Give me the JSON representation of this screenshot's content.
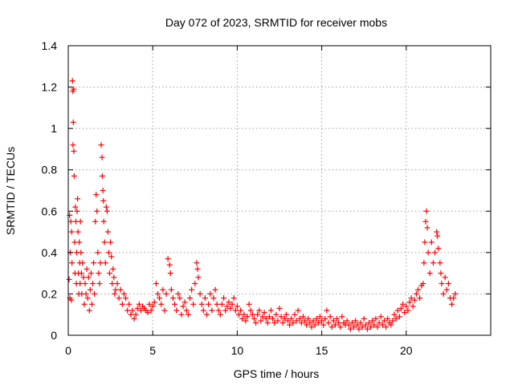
{
  "chart_data": {
    "type": "scatter",
    "title": "Day 072 of 2023, SRMTID for receiver mobs",
    "xlabel": "GPS time / hours",
    "ylabel": "SRMTID / TECUs",
    "xlim": [
      0,
      25
    ],
    "ylim": [
      0,
      1.4
    ],
    "xticks": [
      {
        "value": 0,
        "label": "0"
      },
      {
        "value": 5,
        "label": "5"
      },
      {
        "value": 10,
        "label": "10"
      },
      {
        "value": 15,
        "label": "15"
      },
      {
        "value": 20,
        "label": "20"
      }
    ],
    "yticks": [
      {
        "value": 0,
        "label": "0"
      },
      {
        "value": 0.2,
        "label": "0.2"
      },
      {
        "value": 0.4,
        "label": "0.4"
      },
      {
        "value": 0.6,
        "label": "0.6"
      },
      {
        "value": 0.8,
        "label": "0.8"
      },
      {
        "value": 1.0,
        "label": "1"
      },
      {
        "value": 1.2,
        "label": "1.2"
      },
      {
        "value": 1.4,
        "label": "1.4"
      }
    ],
    "grid": true,
    "marker": "plus",
    "color": "#ff0000",
    "series": [
      {
        "name": "SRMTID",
        "points": [
          [
            0.05,
            0.27
          ],
          [
            0.08,
            0.58
          ],
          [
            0.1,
            0.18
          ],
          [
            0.12,
            0.4
          ],
          [
            0.15,
            0.55
          ],
          [
            0.18,
            0.17
          ],
          [
            0.2,
            0.5
          ],
          [
            0.22,
            0.35
          ],
          [
            0.25,
            1.23
          ],
          [
            0.27,
            1.18
          ],
          [
            0.28,
            0.92
          ],
          [
            0.3,
            1.03
          ],
          [
            0.32,
            1.19
          ],
          [
            0.33,
            0.89
          ],
          [
            0.35,
            0.77
          ],
          [
            0.38,
            0.45
          ],
          [
            0.4,
            0.3
          ],
          [
            0.42,
            0.62
          ],
          [
            0.45,
            0.55
          ],
          [
            0.48,
            0.25
          ],
          [
            0.5,
            0.4
          ],
          [
            0.52,
            0.6
          ],
          [
            0.55,
            0.66
          ],
          [
            0.58,
            0.5
          ],
          [
            0.6,
            0.3
          ],
          [
            0.62,
            0.2
          ],
          [
            0.65,
            0.45
          ],
          [
            0.68,
            0.35
          ],
          [
            0.7,
            0.25
          ],
          [
            0.72,
            0.55
          ],
          [
            0.75,
            0.4
          ],
          [
            0.78,
            0.3
          ],
          [
            0.8,
            0.2
          ],
          [
            0.85,
            0.35
          ],
          [
            0.9,
            0.28
          ],
          [
            0.95,
            0.15
          ],
          [
            1.0,
            0.25
          ],
          [
            1.05,
            0.2
          ],
          [
            1.1,
            0.32
          ],
          [
            1.15,
            0.18
          ],
          [
            1.2,
            0.28
          ],
          [
            1.25,
            0.12
          ],
          [
            1.3,
            0.22
          ],
          [
            1.35,
            0.3
          ],
          [
            1.4,
            0.15
          ],
          [
            1.45,
            0.25
          ],
          [
            1.5,
            0.35
          ],
          [
            1.55,
            0.2
          ],
          [
            1.6,
            0.55
          ],
          [
            1.65,
            0.68
          ],
          [
            1.7,
            0.6
          ],
          [
            1.75,
            0.4
          ],
          [
            1.8,
            0.3
          ],
          [
            1.85,
            0.25
          ],
          [
            1.9,
            0.35
          ],
          [
            1.95,
            0.92
          ],
          [
            2.0,
            0.86
          ],
          [
            2.02,
            0.77
          ],
          [
            2.05,
            0.7
          ],
          [
            2.08,
            0.65
          ],
          [
            2.1,
            0.55
          ],
          [
            2.15,
            0.45
          ],
          [
            2.2,
            0.35
          ],
          [
            2.25,
            0.62
          ],
          [
            2.3,
            0.6
          ],
          [
            2.35,
            0.5
          ],
          [
            2.4,
            0.4
          ],
          [
            2.45,
            0.3
          ],
          [
            2.5,
            0.45
          ],
          [
            2.55,
            0.38
          ],
          [
            2.6,
            0.25
          ],
          [
            2.65,
            0.32
          ],
          [
            2.7,
            0.28
          ],
          [
            2.75,
            0.2
          ],
          [
            2.8,
            0.22
          ],
          [
            2.9,
            0.25
          ],
          [
            3.0,
            0.18
          ],
          [
            3.1,
            0.22
          ],
          [
            3.2,
            0.15
          ],
          [
            3.3,
            0.2
          ],
          [
            3.4,
            0.18
          ],
          [
            3.5,
            0.12
          ],
          [
            3.6,
            0.15
          ],
          [
            3.7,
            0.1
          ],
          [
            3.8,
            0.12
          ],
          [
            3.9,
            0.08
          ],
          [
            4.0,
            0.1
          ],
          [
            4.1,
            0.13
          ],
          [
            4.2,
            0.15
          ],
          [
            4.3,
            0.12
          ],
          [
            4.4,
            0.14
          ],
          [
            4.5,
            0.13
          ],
          [
            4.6,
            0.12
          ],
          [
            4.7,
            0.11
          ],
          [
            4.8,
            0.15
          ],
          [
            4.9,
            0.12
          ],
          [
            5.0,
            0.14
          ],
          [
            5.1,
            0.16
          ],
          [
            5.2,
            0.25
          ],
          [
            5.3,
            0.2
          ],
          [
            5.4,
            0.18
          ],
          [
            5.5,
            0.15
          ],
          [
            5.6,
            0.22
          ],
          [
            5.7,
            0.12
          ],
          [
            5.8,
            0.2
          ],
          [
            5.9,
            0.37
          ],
          [
            6.0,
            0.34
          ],
          [
            6.05,
            0.3
          ],
          [
            6.1,
            0.22
          ],
          [
            6.2,
            0.18
          ],
          [
            6.3,
            0.15
          ],
          [
            6.4,
            0.12
          ],
          [
            6.5,
            0.2
          ],
          [
            6.6,
            0.18
          ],
          [
            6.7,
            0.1
          ],
          [
            6.8,
            0.14
          ],
          [
            6.9,
            0.16
          ],
          [
            7.0,
            0.12
          ],
          [
            7.1,
            0.1
          ],
          [
            7.2,
            0.18
          ],
          [
            7.3,
            0.22
          ],
          [
            7.4,
            0.15
          ],
          [
            7.5,
            0.25
          ],
          [
            7.6,
            0.35
          ],
          [
            7.65,
            0.32
          ],
          [
            7.7,
            0.28
          ],
          [
            7.8,
            0.2
          ],
          [
            7.9,
            0.15
          ],
          [
            8.0,
            0.12
          ],
          [
            8.1,
            0.18
          ],
          [
            8.2,
            0.1
          ],
          [
            8.3,
            0.15
          ],
          [
            8.4,
            0.2
          ],
          [
            8.5,
            0.12
          ],
          [
            8.6,
            0.18
          ],
          [
            8.7,
            0.22
          ],
          [
            8.8,
            0.15
          ],
          [
            8.9,
            0.12
          ],
          [
            9.0,
            0.1
          ],
          [
            9.1,
            0.15
          ],
          [
            9.2,
            0.18
          ],
          [
            9.3,
            0.12
          ],
          [
            9.4,
            0.14
          ],
          [
            9.5,
            0.16
          ],
          [
            9.6,
            0.13
          ],
          [
            9.7,
            0.15
          ],
          [
            9.8,
            0.18
          ],
          [
            9.9,
            0.12
          ],
          [
            10.0,
            0.14
          ],
          [
            10.1,
            0.1
          ],
          [
            10.2,
            0.12
          ],
          [
            10.3,
            0.08
          ],
          [
            10.4,
            0.1
          ],
          [
            10.5,
            0.07
          ],
          [
            10.6,
            0.09
          ],
          [
            10.7,
            0.15
          ],
          [
            10.8,
            0.12
          ],
          [
            10.9,
            0.1
          ],
          [
            11.0,
            0.08
          ],
          [
            11.1,
            0.06
          ],
          [
            11.2,
            0.1
          ],
          [
            11.3,
            0.12
          ],
          [
            11.4,
            0.07
          ],
          [
            11.5,
            0.09
          ],
          [
            11.6,
            0.11
          ],
          [
            11.7,
            0.08
          ],
          [
            11.8,
            0.06
          ],
          [
            11.9,
            0.09
          ],
          [
            12.0,
            0.12
          ],
          [
            12.1,
            0.08
          ],
          [
            12.2,
            0.06
          ],
          [
            12.3,
            0.1
          ],
          [
            12.4,
            0.07
          ],
          [
            12.5,
            0.13
          ],
          [
            12.6,
            0.09
          ],
          [
            12.7,
            0.06
          ],
          [
            12.8,
            0.08
          ],
          [
            12.9,
            0.1
          ],
          [
            13.0,
            0.07
          ],
          [
            13.1,
            0.05
          ],
          [
            13.2,
            0.08
          ],
          [
            13.3,
            0.06
          ],
          [
            13.4,
            0.1
          ],
          [
            13.5,
            0.07
          ],
          [
            13.6,
            0.12
          ],
          [
            13.7,
            0.08
          ],
          [
            13.8,
            0.06
          ],
          [
            13.9,
            0.09
          ],
          [
            14.0,
            0.07
          ],
          [
            14.1,
            0.05
          ],
          [
            14.2,
            0.08
          ],
          [
            14.3,
            0.06
          ],
          [
            14.4,
            0.04
          ],
          [
            14.5,
            0.07
          ],
          [
            14.6,
            0.05
          ],
          [
            14.7,
            0.08
          ],
          [
            14.8,
            0.06
          ],
          [
            14.9,
            0.09
          ],
          [
            15.0,
            0.07
          ],
          [
            15.1,
            0.05
          ],
          [
            15.2,
            0.08
          ],
          [
            15.3,
            0.12
          ],
          [
            15.4,
            0.06
          ],
          [
            15.5,
            0.09
          ],
          [
            15.6,
            0.04
          ],
          [
            15.7,
            0.07
          ],
          [
            15.8,
            0.05
          ],
          [
            15.9,
            0.08
          ],
          [
            16.0,
            0.06
          ],
          [
            16.1,
            0.04
          ],
          [
            16.2,
            0.09
          ],
          [
            16.3,
            0.06
          ],
          [
            16.4,
            0.05
          ],
          [
            16.5,
            0.07
          ],
          [
            16.6,
            0.05
          ],
          [
            16.7,
            0.03
          ],
          [
            16.8,
            0.06
          ],
          [
            16.9,
            0.04
          ],
          [
            17.0,
            0.07
          ],
          [
            17.1,
            0.05
          ],
          [
            17.2,
            0.03
          ],
          [
            17.3,
            0.06
          ],
          [
            17.4,
            0.04
          ],
          [
            17.5,
            0.08
          ],
          [
            17.6,
            0.05
          ],
          [
            17.7,
            0.03
          ],
          [
            17.8,
            0.06
          ],
          [
            17.9,
            0.04
          ],
          [
            18.0,
            0.07
          ],
          [
            18.1,
            0.05
          ],
          [
            18.2,
            0.08
          ],
          [
            18.3,
            0.04
          ],
          [
            18.4,
            0.06
          ],
          [
            18.5,
            0.09
          ],
          [
            18.6,
            0.05
          ],
          [
            18.7,
            0.07
          ],
          [
            18.8,
            0.04
          ],
          [
            18.9,
            0.08
          ],
          [
            19.0,
            0.06
          ],
          [
            19.1,
            0.05
          ],
          [
            19.2,
            0.07
          ],
          [
            19.3,
            0.1
          ],
          [
            19.4,
            0.08
          ],
          [
            19.5,
            0.12
          ],
          [
            19.6,
            0.09
          ],
          [
            19.7,
            0.13
          ],
          [
            19.8,
            0.15
          ],
          [
            19.9,
            0.11
          ],
          [
            20.0,
            0.14
          ],
          [
            20.1,
            0.12
          ],
          [
            20.2,
            0.16
          ],
          [
            20.3,
            0.18
          ],
          [
            20.4,
            0.14
          ],
          [
            20.5,
            0.17
          ],
          [
            20.6,
            0.2
          ],
          [
            20.7,
            0.22
          ],
          [
            20.8,
            0.18
          ],
          [
            20.9,
            0.24
          ],
          [
            21.0,
            0.25
          ],
          [
            21.05,
            0.35
          ],
          [
            21.1,
            0.45
          ],
          [
            21.15,
            0.55
          ],
          [
            21.2,
            0.6
          ],
          [
            21.25,
            0.52
          ],
          [
            21.3,
            0.4
          ],
          [
            21.4,
            0.3
          ],
          [
            21.5,
            0.45
          ],
          [
            21.6,
            0.35
          ],
          [
            21.7,
            0.4
          ],
          [
            21.8,
            0.5
          ],
          [
            21.85,
            0.48
          ],
          [
            21.9,
            0.42
          ],
          [
            22.0,
            0.35
          ],
          [
            22.05,
            0.3
          ],
          [
            22.1,
            0.25
          ],
          [
            22.2,
            0.2
          ],
          [
            22.3,
            0.28
          ],
          [
            22.4,
            0.22
          ],
          [
            22.5,
            0.25
          ],
          [
            22.6,
            0.18
          ],
          [
            22.7,
            0.15
          ],
          [
            22.8,
            0.18
          ],
          [
            22.9,
            0.2
          ]
        ]
      }
    ]
  }
}
